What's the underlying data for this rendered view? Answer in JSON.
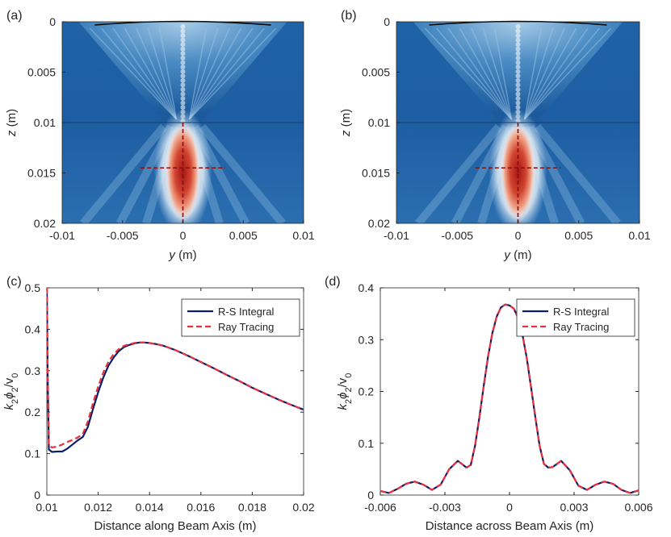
{
  "colors": {
    "rs": "#0b1f66",
    "ray": "#e8303f",
    "focus_marker": "#8b0d0d",
    "lens_curve": "#000000"
  },
  "chart_data": [
    {
      "type": "heatmap",
      "panel_label": "(a)",
      "ylabel_var": "z",
      "ylabel_unit": "(m)",
      "xlabel_var": "y",
      "xlabel_unit": "(m)",
      "xlim": [
        -0.01,
        0.01
      ],
      "ylim": [
        0,
        0.02
      ],
      "x_ticks": [
        "-0.01",
        "-0.005",
        "0",
        "0.005",
        "0.01"
      ],
      "y_ticks": [
        "0",
        "0.005",
        "0.01",
        "0.015",
        "0.02"
      ],
      "interface_z": 0.01,
      "focus": {
        "y": 0,
        "z": 0.0145
      },
      "focus_marker_y_range": [
        -0.0035,
        0.0035
      ],
      "focus_marker_z_range": [
        0.01,
        0.02
      ],
      "lens_y_range": [
        -0.0073,
        0.0073
      ],
      "colormap": "blue-white-red",
      "x_shown": false
    },
    {
      "type": "heatmap",
      "panel_label": "(b)",
      "ylabel_var": "z",
      "ylabel_unit": "(m)",
      "xlabel_var": "y",
      "xlabel_unit": "(m)",
      "xlim": [
        -0.01,
        0.01
      ],
      "ylim": [
        0,
        0.02
      ],
      "x_ticks": [
        "-0.01",
        "-0.005",
        "0",
        "0.005",
        "0.01"
      ],
      "y_ticks": [
        "0",
        "0.005",
        "0.01",
        "0.015",
        "0.02"
      ],
      "interface_z": 0.01,
      "focus": {
        "y": 0,
        "z": 0.0145
      },
      "focus_marker_y_range": [
        -0.0035,
        0.0035
      ],
      "focus_marker_z_range": [
        0.01,
        0.02
      ],
      "lens_y_range": [
        -0.0073,
        0.0073
      ],
      "colormap": "blue-white-red"
    },
    {
      "type": "line",
      "panel_label": "(c)",
      "xlabel": "Distance along Beam Axis (m)",
      "ylabel": "k2ϕ2/v0",
      "xlim": [
        0.01,
        0.02
      ],
      "ylim": [
        0,
        0.5
      ],
      "x_ticks": [
        "0.01",
        "0.012",
        "0.014",
        "0.016",
        "0.018",
        "0.02"
      ],
      "y_ticks": [
        "0",
        "0.1",
        "0.2",
        "0.3",
        "0.4",
        "0.5"
      ],
      "legend": [
        "R-S Integral",
        "Ray Tracing"
      ],
      "legend_position": "top-right",
      "series": [
        {
          "name": "R-S Integral",
          "x": [
            0.01,
            0.01003,
            0.01008,
            0.0102,
            0.0104,
            0.0106,
            0.0108,
            0.011,
            0.0112,
            0.0114,
            0.0116,
            0.0118,
            0.012,
            0.0122,
            0.0124,
            0.0126,
            0.0128,
            0.013,
            0.0132,
            0.0134,
            0.0136,
            0.0138,
            0.014,
            0.0142,
            0.0145,
            0.015,
            0.0155,
            0.016,
            0.0165,
            0.017,
            0.0175,
            0.018,
            0.0185,
            0.019,
            0.0195,
            0.02
          ],
          "y": [
            0.5,
            0.3,
            0.11,
            0.104,
            0.105,
            0.105,
            0.112,
            0.122,
            0.132,
            0.14,
            0.165,
            0.208,
            0.248,
            0.284,
            0.312,
            0.332,
            0.347,
            0.357,
            0.362,
            0.366,
            0.368,
            0.368,
            0.367,
            0.365,
            0.361,
            0.35,
            0.336,
            0.321,
            0.306,
            0.29,
            0.275,
            0.259,
            0.245,
            0.231,
            0.218,
            0.206
          ]
        },
        {
          "name": "Ray Tracing",
          "x": [
            0.01,
            0.01003,
            0.01008,
            0.0102,
            0.0104,
            0.0106,
            0.0108,
            0.011,
            0.0112,
            0.0114,
            0.0116,
            0.0118,
            0.012,
            0.0122,
            0.0124,
            0.0126,
            0.0128,
            0.013,
            0.0132,
            0.0134,
            0.0136,
            0.0138,
            0.014,
            0.0142,
            0.0145,
            0.015,
            0.0155,
            0.016,
            0.0165,
            0.017,
            0.0175,
            0.018,
            0.0185,
            0.019,
            0.0195,
            0.02
          ],
          "y": [
            0.5,
            0.3,
            0.12,
            0.115,
            0.117,
            0.122,
            0.128,
            0.133,
            0.139,
            0.147,
            0.178,
            0.222,
            0.262,
            0.296,
            0.322,
            0.34,
            0.352,
            0.36,
            0.364,
            0.367,
            0.368,
            0.368,
            0.367,
            0.365,
            0.361,
            0.35,
            0.336,
            0.321,
            0.306,
            0.29,
            0.275,
            0.259,
            0.245,
            0.231,
            0.218,
            0.206
          ]
        }
      ]
    },
    {
      "type": "line",
      "panel_label": "(d)",
      "xlabel": "Distance across Beam Axis (m)",
      "ylabel": "k2ϕ2/v0",
      "xlim": [
        -0.006,
        0.006
      ],
      "ylim": [
        0,
        0.4
      ],
      "x_ticks": [
        "-0.006",
        "-0.003",
        "0",
        "0.003",
        "0.006"
      ],
      "y_ticks": [
        "0",
        "0.1",
        "0.2",
        "0.3",
        "0.4"
      ],
      "legend": [
        "R-S Integral",
        "Ray Tracing"
      ],
      "legend_position": "top-right",
      "series": [
        {
          "name": "R-S Integral",
          "x": [
            -0.006,
            -0.0056,
            -0.0052,
            -0.0048,
            -0.0044,
            -0.004,
            -0.0036,
            -0.0032,
            -0.0028,
            -0.0024,
            -0.002,
            -0.0018,
            -0.0016,
            -0.0014,
            -0.0012,
            -0.001,
            -0.0008,
            -0.0006,
            -0.0004,
            -0.0002,
            0,
            0.0002,
            0.0004,
            0.0006,
            0.0008,
            0.001,
            0.0012,
            0.0014,
            0.0016,
            0.0018,
            0.002,
            0.0024,
            0.0028,
            0.0032,
            0.0036,
            0.004,
            0.0044,
            0.0048,
            0.0052,
            0.0056,
            0.006
          ],
          "y": [
            0.008,
            0.004,
            0.012,
            0.022,
            0.026,
            0.02,
            0.01,
            0.02,
            0.05,
            0.066,
            0.053,
            0.058,
            0.095,
            0.15,
            0.21,
            0.266,
            0.312,
            0.344,
            0.362,
            0.368,
            0.366,
            0.36,
            0.342,
            0.31,
            0.265,
            0.208,
            0.15,
            0.095,
            0.06,
            0.053,
            0.054,
            0.066,
            0.048,
            0.018,
            0.01,
            0.02,
            0.026,
            0.022,
            0.01,
            0.004,
            0.009
          ]
        },
        {
          "name": "Ray Tracing",
          "x": [
            -0.006,
            -0.0056,
            -0.0052,
            -0.0048,
            -0.0044,
            -0.004,
            -0.0036,
            -0.0032,
            -0.0028,
            -0.0024,
            -0.002,
            -0.0018,
            -0.0016,
            -0.0014,
            -0.0012,
            -0.001,
            -0.0008,
            -0.0006,
            -0.0004,
            -0.0002,
            0,
            0.0002,
            0.0004,
            0.0006,
            0.0008,
            0.001,
            0.0012,
            0.0014,
            0.0016,
            0.0018,
            0.002,
            0.0024,
            0.0028,
            0.0032,
            0.0036,
            0.004,
            0.0044,
            0.0048,
            0.0052,
            0.0056,
            0.006
          ],
          "y": [
            0.008,
            0.004,
            0.012,
            0.022,
            0.026,
            0.02,
            0.01,
            0.02,
            0.05,
            0.066,
            0.053,
            0.058,
            0.095,
            0.15,
            0.21,
            0.266,
            0.312,
            0.344,
            0.362,
            0.368,
            0.366,
            0.36,
            0.342,
            0.31,
            0.265,
            0.208,
            0.15,
            0.095,
            0.06,
            0.053,
            0.054,
            0.066,
            0.048,
            0.018,
            0.01,
            0.02,
            0.026,
            0.022,
            0.01,
            0.004,
            0.009
          ]
        }
      ]
    }
  ]
}
